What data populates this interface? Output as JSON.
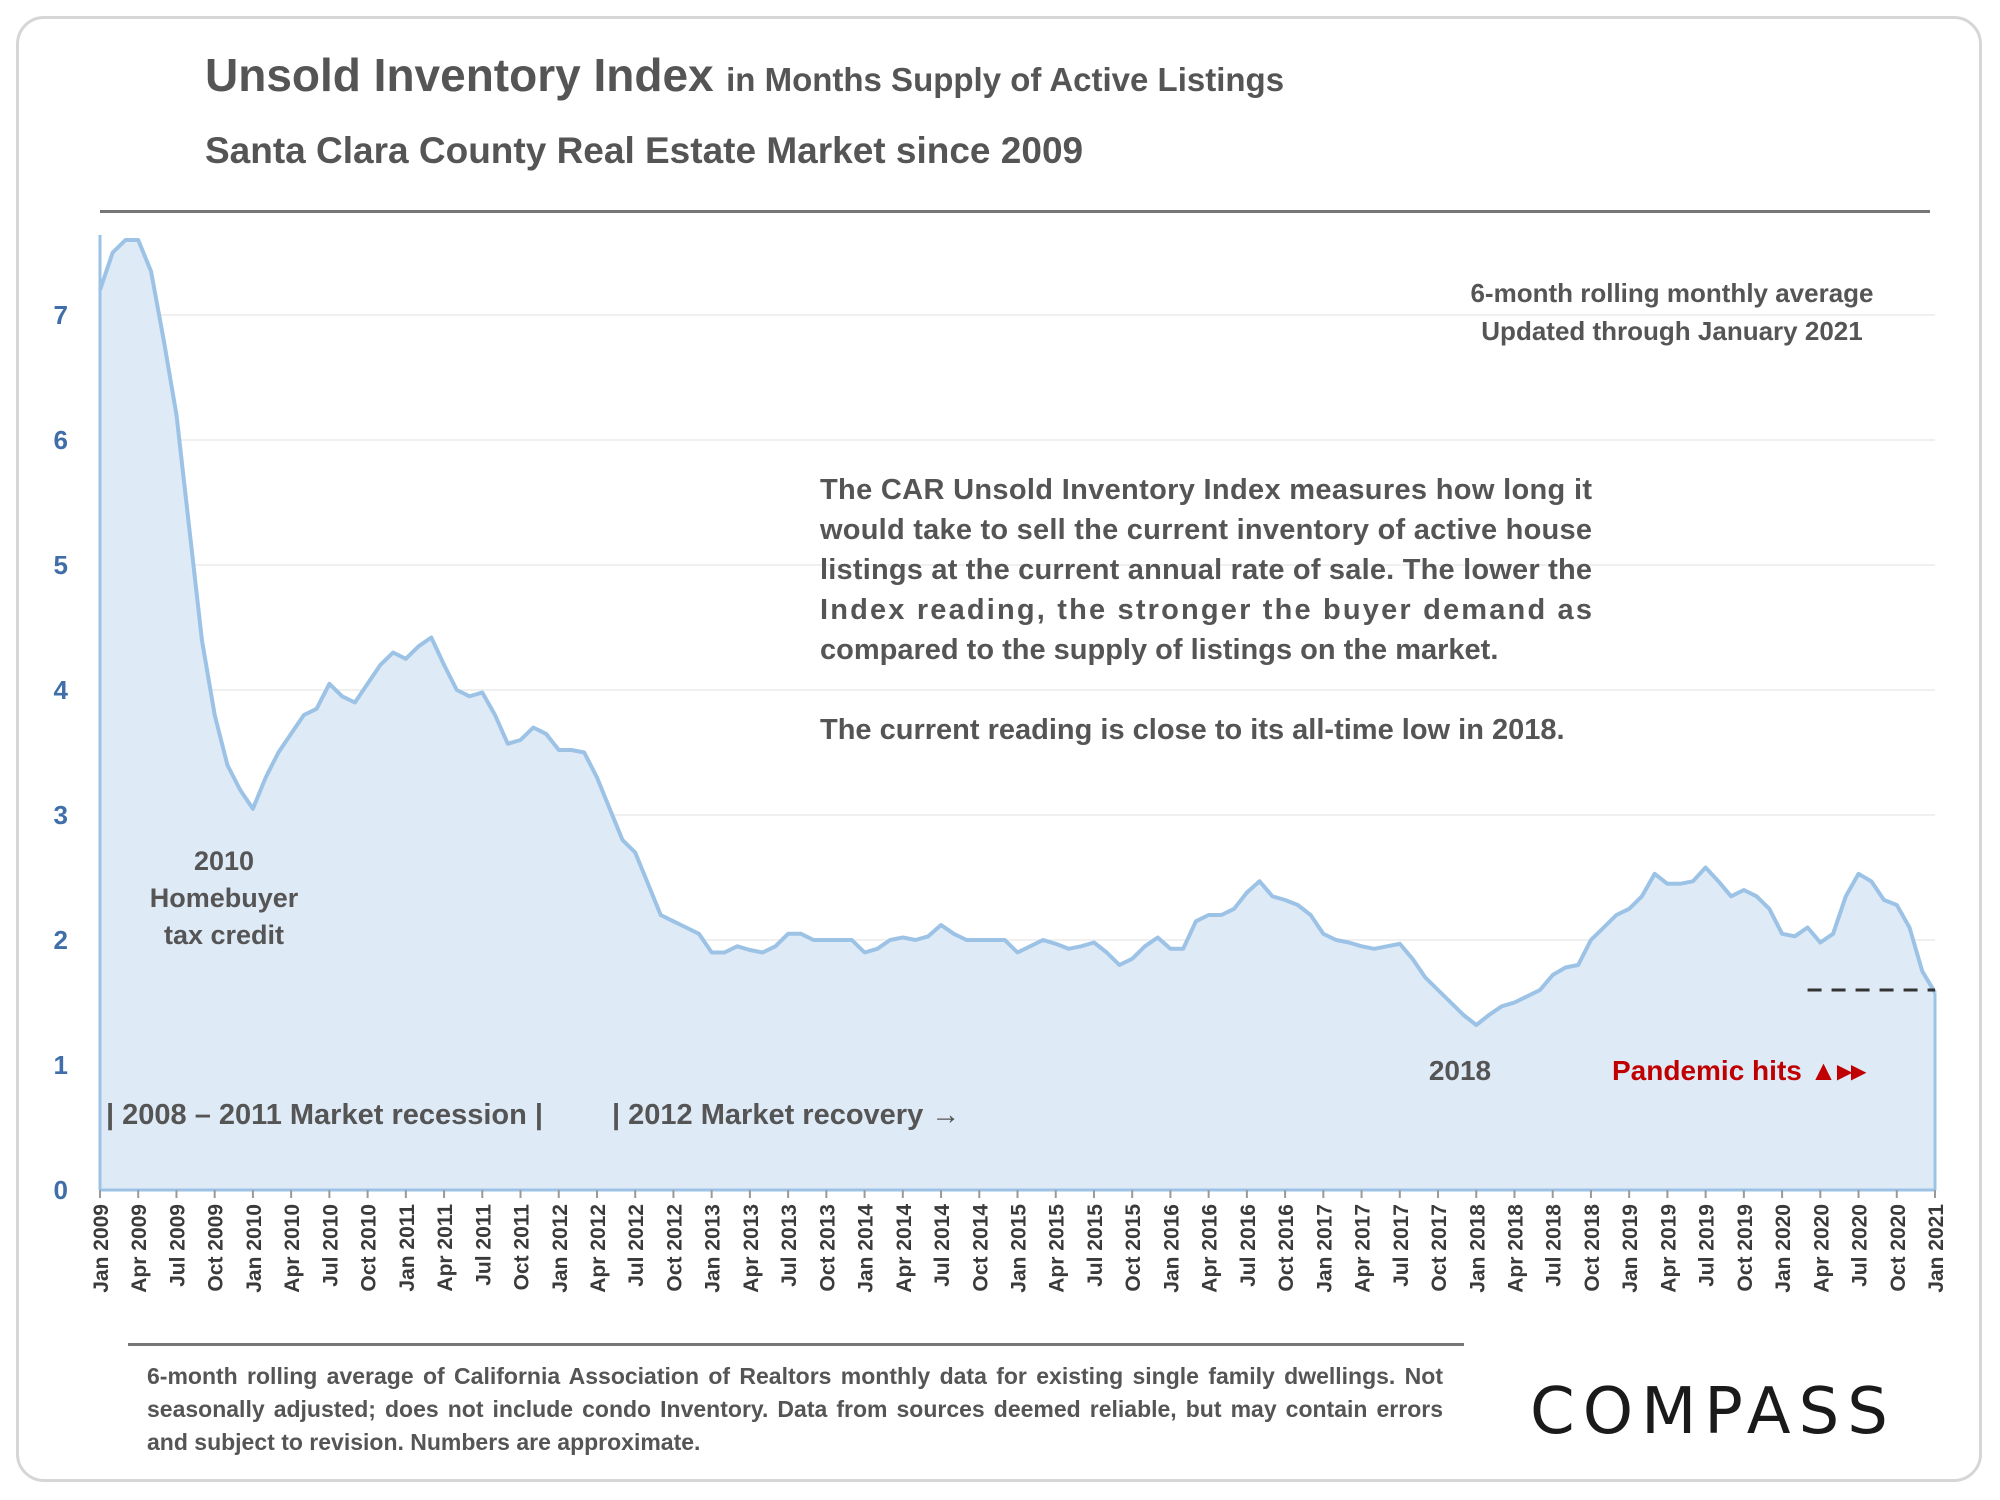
{
  "title": {
    "main": "Unsold Inventory Index",
    "sub": "in Months Supply of Active Listings"
  },
  "subtitle": "Santa Clara County Real Estate Market since 2009",
  "footnote": "6-month rolling average of California Association of Realtors monthly data for existing single family dwellings. Not seasonally adjusted; does not include condo Inventory. Data from sources deemed reliable, but may contain errors and subject to revision. Numbers are approximate.",
  "logo": "COMPASS",
  "colors": {
    "line": "#9cc3e6",
    "fill": "#dfeaf7",
    "axis_text": "#3f6ea8",
    "pandemic": "#c00000",
    "dash": "#333333"
  },
  "chart_data": {
    "type": "area",
    "title": "Unsold Inventory Index in Months Supply of Active Listings",
    "ylim": [
      0,
      7.6
    ],
    "yticks": [
      0,
      1,
      2,
      3,
      4,
      5,
      6,
      7
    ],
    "grid": true,
    "xticks": [
      "Jan 2009",
      "Apr 2009",
      "Jul 2009",
      "Oct 2009",
      "Jan 2010",
      "Apr 2010",
      "Jul 2010",
      "Oct 2010",
      "Jan 2011",
      "Apr 2011",
      "Jul 2011",
      "Oct 2011",
      "Jan 2012",
      "Apr 2012",
      "Jul 2012",
      "Oct 2012",
      "Jan 2013",
      "Apr 2013",
      "Jul 2013",
      "Oct 2013",
      "Jan 2014",
      "Apr 2014",
      "Jul 2014",
      "Oct 2014",
      "Jan 2015",
      "Apr 2015",
      "Jul 2015",
      "Oct 2015",
      "Jan 2016",
      "Apr 2016",
      "Jul 2016",
      "Oct 2016",
      "Jan 2017",
      "Apr 2017",
      "Jul 2017",
      "Oct 2017",
      "Jan 2018",
      "Apr 2018",
      "Jul 2018",
      "Oct 2018",
      "Jan 2019",
      "Apr 2019",
      "Jul 2019",
      "Oct 2019",
      "Jan 2020",
      "Apr 2020",
      "Jul 2020",
      "Oct 2020",
      "Jan 2021"
    ],
    "series": [
      {
        "x_start": "Jan 2009",
        "x_end": "Jan 2021",
        "frequency": "monthly",
        "values": [
          7.2,
          7.5,
          7.6,
          7.6,
          7.35,
          6.8,
          6.2,
          5.3,
          4.4,
          3.8,
          3.4,
          3.2,
          3.05,
          3.3,
          3.5,
          3.65,
          3.8,
          3.85,
          4.05,
          3.95,
          3.9,
          4.05,
          4.2,
          4.3,
          4.25,
          4.35,
          4.42,
          4.2,
          4.0,
          3.95,
          3.98,
          3.8,
          3.57,
          3.6,
          3.7,
          3.65,
          3.52,
          3.52,
          3.5,
          3.3,
          3.05,
          2.8,
          2.7,
          2.45,
          2.2,
          2.15,
          2.1,
          2.05,
          1.9,
          1.9,
          1.95,
          1.92,
          1.9,
          1.95,
          2.05,
          2.05,
          2.0,
          2.0,
          2.0,
          2.0,
          1.9,
          1.93,
          2.0,
          2.02,
          2.0,
          2.03,
          2.12,
          2.05,
          2.0,
          2.0,
          2.0,
          2.0,
          1.9,
          1.95,
          2.0,
          1.97,
          1.93,
          1.95,
          1.98,
          1.9,
          1.8,
          1.85,
          1.95,
          2.02,
          1.93,
          1.93,
          2.15,
          2.2,
          2.2,
          2.25,
          2.38,
          2.47,
          2.35,
          2.32,
          2.28,
          2.2,
          2.05,
          2.0,
          1.98,
          1.95,
          1.93,
          1.95,
          1.97,
          1.85,
          1.7,
          1.6,
          1.5,
          1.4,
          1.32,
          1.4,
          1.47,
          1.5,
          1.55,
          1.6,
          1.72,
          1.78,
          1.8,
          2.0,
          2.1,
          2.2,
          2.25,
          2.35,
          2.53,
          2.45,
          2.45,
          2.47,
          2.58,
          2.47,
          2.35,
          2.4,
          2.35,
          2.25,
          2.05,
          2.03,
          2.1,
          1.98,
          2.05,
          2.35,
          2.53,
          2.47,
          2.32,
          2.28,
          2.1,
          1.75,
          1.58
        ]
      }
    ],
    "reference_line": {
      "style": "dashed",
      "value": 1.58,
      "x_from": "Mar 2020",
      "x_to": "Jan 2021"
    },
    "annotations": {
      "rolling_note_1": "6-month rolling monthly average",
      "rolling_note_2": "Updated through January 2021",
      "description_lines": [
        "The CAR Unsold Inventory Index measures how long it",
        "would take to sell the current inventory of active house",
        "listings at the current annual rate of sale. The lower the",
        "Index reading, the stronger the buyer demand as",
        "compared to the supply of listings on the market."
      ],
      "current_reading": "The current reading is close to its all-time low in 2018.",
      "homebuyer_lines": [
        "2010",
        "Homebuyer",
        "tax credit"
      ],
      "label_2018": "2018",
      "pandemic": "Pandemic hits ▲▸▸",
      "recession": "| 2008 – 2011 Market recession |",
      "recovery": "| 2012 Market recovery →"
    }
  }
}
